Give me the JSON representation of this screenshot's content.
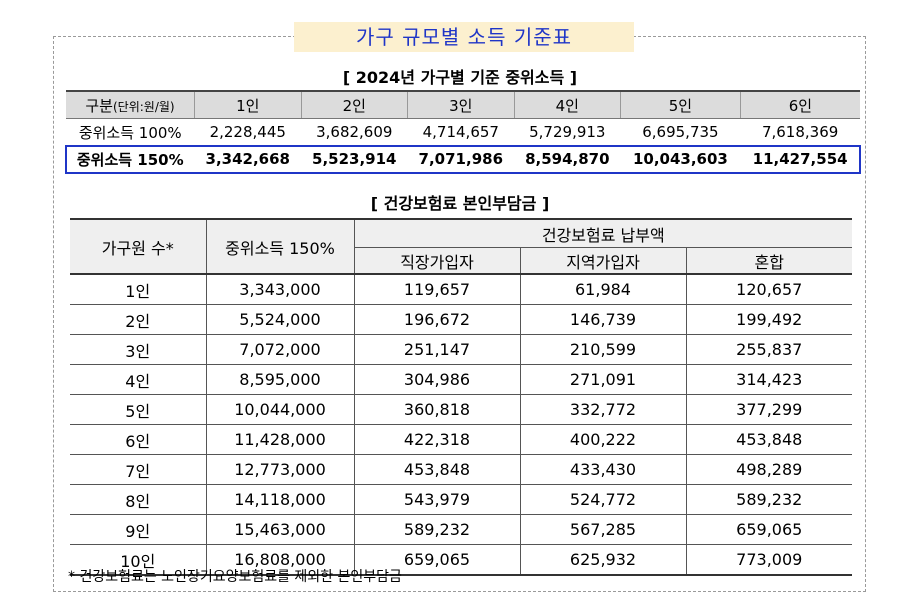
{
  "main_title": "가구 규모별 소득 기준표",
  "section1": {
    "title": "[ 2024년 가구별 기준 중위소득 ]",
    "header": {
      "label_main": "구분",
      "label_unit": "(단위:원/월)",
      "cols": [
        "1인",
        "2인",
        "3인",
        "4인",
        "5인",
        "6인"
      ]
    },
    "rows": [
      {
        "label": "중위소득 100%",
        "values": [
          "2,228,445",
          "3,682,609",
          "4,714,657",
          "5,729,913",
          "6,695,735",
          "7,618,369"
        ]
      },
      {
        "label": "중위소득 150%",
        "values": [
          "3,342,668",
          "5,523,914",
          "7,071,986",
          "8,594,870",
          "10,043,603",
          "11,427,554"
        ]
      }
    ]
  },
  "section2": {
    "title": "[ 건강보험료 본인부담금 ]",
    "header": {
      "household": "가구원 수*",
      "median": "중위소득 150%",
      "premium_group": "건강보험료 납부액",
      "employee": "직장가입자",
      "regional": "지역가입자",
      "mixed": "혼합"
    },
    "rows": [
      {
        "size": "1인",
        "median": "3,343,000",
        "employee": "119,657",
        "regional": "61,984",
        "mixed": "120,657"
      },
      {
        "size": "2인",
        "median": "5,524,000",
        "employee": "196,672",
        "regional": "146,739",
        "mixed": "199,492"
      },
      {
        "size": "3인",
        "median": "7,072,000",
        "employee": "251,147",
        "regional": "210,599",
        "mixed": "255,837"
      },
      {
        "size": "4인",
        "median": "8,595,000",
        "employee": "304,986",
        "regional": "271,091",
        "mixed": "314,423"
      },
      {
        "size": "5인",
        "median": "10,044,000",
        "employee": "360,818",
        "regional": "332,772",
        "mixed": "377,299"
      },
      {
        "size": "6인",
        "median": "11,428,000",
        "employee": "422,318",
        "regional": "400,222",
        "mixed": "453,848"
      },
      {
        "size": "7인",
        "median": "12,773,000",
        "employee": "453,848",
        "regional": "433,430",
        "mixed": "498,289"
      },
      {
        "size": "8인",
        "median": "14,118,000",
        "employee": "543,979",
        "regional": "524,772",
        "mixed": "589,232"
      },
      {
        "size": "9인",
        "median": "15,463,000",
        "employee": "589,232",
        "regional": "567,285",
        "mixed": "659,065"
      },
      {
        "size": "10인",
        "median": "16,808,000",
        "employee": "659,065",
        "regional": "625,932",
        "mixed": "773,009"
      }
    ]
  },
  "footnote": "* 건강보험료는 노인장기요양보험료를 제외한 본인부담금"
}
